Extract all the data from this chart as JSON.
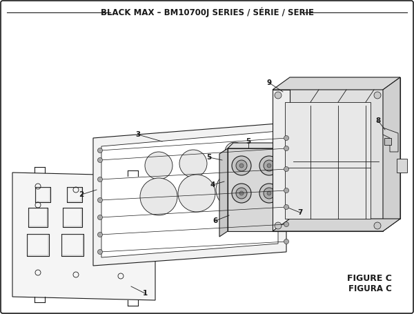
{
  "title": "BLACK MAX – BM10700J SERIES / SÉRIE / SERIE",
  "figure_label": "FIGURE C",
  "figura_label": "FIGURA C",
  "bg_color": "#ffffff",
  "border_color": "#000000",
  "line_color": "#1a1a1a",
  "title_fontsize": 8.5,
  "label_fontsize": 7.5,
  "fig_label_fontsize": 9
}
